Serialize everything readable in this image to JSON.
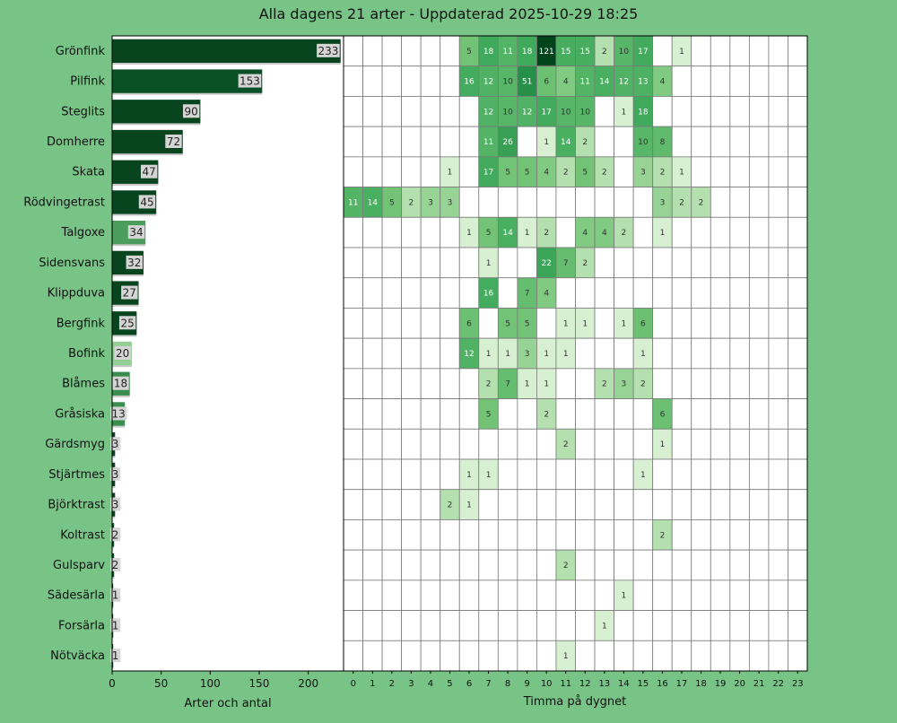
{
  "chart_data": {
    "type": "bar+heatmap",
    "title": "Alla dagens 21 arter - Uppdaterad 2025-10-29 18:25",
    "xlabel_bar": "Arter och antal",
    "xlabel_heatmap": "Timma på dygnet",
    "bar_xticks": [
      0,
      50,
      100,
      150,
      200
    ],
    "bar_xlim": [
      0,
      236
    ],
    "hours": [
      0,
      1,
      2,
      3,
      4,
      5,
      6,
      7,
      8,
      9,
      10,
      11,
      12,
      13,
      14,
      15,
      16,
      17,
      18,
      19,
      20,
      21,
      22,
      23
    ],
    "current_hour": 18,
    "highlight_color": "#ffff00",
    "species": [
      {
        "name": "Grönfink",
        "total": 233,
        "hours": {
          "6": 5,
          "7": 18,
          "8": 11,
          "9": 18,
          "10": 121,
          "11": 15,
          "12": 15,
          "13": 2,
          "14": 10,
          "15": 17,
          "17": 1
        }
      },
      {
        "name": "Pilfink",
        "total": 153,
        "hours": {
          "6": 16,
          "7": 12,
          "8": 10,
          "9": 51,
          "10": 6,
          "11": 4,
          "12": 11,
          "13": 14,
          "14": 12,
          "15": 13,
          "16": 4
        }
      },
      {
        "name": "Steglits",
        "total": 90,
        "hours": {
          "7": 12,
          "8": 10,
          "9": 12,
          "10": 17,
          "11": 10,
          "12": 10,
          "14": 1,
          "15": 18
        }
      },
      {
        "name": "Domherre",
        "total": 72,
        "hours": {
          "7": 11,
          "8": 26,
          "10": 1,
          "11": 14,
          "12": 2,
          "15": 10,
          "16": 8
        }
      },
      {
        "name": "Skata",
        "total": 47,
        "hours": {
          "5": 1,
          "7": 17,
          "8": 5,
          "9": 5,
          "10": 4,
          "11": 2,
          "12": 5,
          "13": 2,
          "15": 3,
          "16": 2,
          "17": 1
        }
      },
      {
        "name": "Rödvingetrast",
        "total": 45,
        "hours": {
          "0": 11,
          "1": 14,
          "2": 5,
          "3": 2,
          "4": 3,
          "5": 3,
          "16": 3,
          "17": 2,
          "18": 2
        }
      },
      {
        "name": "Talgoxe",
        "total": 34,
        "hours": {
          "6": 1,
          "7": 5,
          "8": 14,
          "9": 1,
          "10": 2,
          "12": 4,
          "13": 4,
          "14": 2,
          "16": 1
        }
      },
      {
        "name": "Sidensvans",
        "total": 32,
        "hours": {
          "7": 1,
          "10": 22,
          "11": 7,
          "12": 2
        }
      },
      {
        "name": "Klippduva",
        "total": 27,
        "hours": {
          "7": 16,
          "9": 7,
          "10": 4
        }
      },
      {
        "name": "Bergfink",
        "total": 25,
        "hours": {
          "6": 6,
          "8": 5,
          "9": 5,
          "11": 1,
          "12": 1,
          "14": 1,
          "15": 6
        }
      },
      {
        "name": "Bofink",
        "total": 20,
        "hours": {
          "6": 12,
          "7": 1,
          "8": 1,
          "9": 3,
          "10": 1,
          "11": 1,
          "15": 1
        }
      },
      {
        "name": "Blåmes",
        "total": 18,
        "hours": {
          "7": 2,
          "8": 7,
          "9": 1,
          "10": 1,
          "13": 2,
          "14": 3,
          "15": 2
        }
      },
      {
        "name": "Gråsiska",
        "total": 13,
        "hours": {
          "7": 5,
          "10": 2,
          "16": 6
        }
      },
      {
        "name": "Gärdsmyg",
        "total": 3,
        "hours": {
          "11": 2,
          "16": 1
        }
      },
      {
        "name": "Stjärtmes",
        "total": 3,
        "hours": {
          "6": 1,
          "7": 1,
          "15": 1
        }
      },
      {
        "name": "Björktrast",
        "total": 3,
        "hours": {
          "5": 2,
          "6": 1
        }
      },
      {
        "name": "Koltrast",
        "total": 2,
        "hours": {
          "16": 2
        }
      },
      {
        "name": "Gulsparv",
        "total": 2,
        "hours": {
          "11": 2
        }
      },
      {
        "name": "Sädesärla",
        "total": 1,
        "hours": {
          "14": 1
        }
      },
      {
        "name": "Forsärla",
        "total": 1,
        "hours": {
          "13": 1
        }
      },
      {
        "name": "Nötväcka",
        "total": 1,
        "hours": {
          "11": 1
        }
      }
    ],
    "bar_colors": [
      "#08451f",
      "#0a5027",
      "#08451f",
      "#08451f",
      "#08451f",
      "#08451f",
      "#4a9d5c",
      "#08451f",
      "#08451f",
      "#08451f",
      "#95cf95",
      "#3a8d4e",
      "#3a8d4e",
      "#08451f",
      "#08451f",
      "#08451f",
      "#08451f",
      "#08451f",
      "#08451f",
      "#08451f",
      "#08451f"
    ],
    "background_color": "#78c487"
  }
}
